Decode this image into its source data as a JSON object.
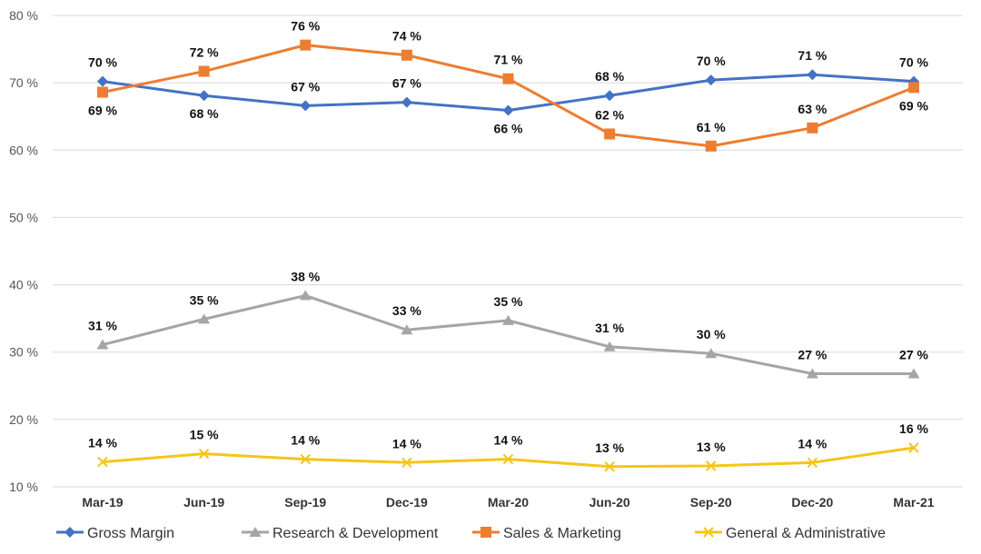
{
  "chart_data": {
    "type": "line",
    "title": "",
    "xlabel": "",
    "ylabel": "",
    "ylim": [
      10,
      80
    ],
    "y_ticks": [
      "10 %",
      "20 %",
      "30 %",
      "40 %",
      "50 %",
      "60 %",
      "70 %",
      "80 %"
    ],
    "grid": "horizontal",
    "legend_position": "bottom",
    "categories": [
      "Mar-19",
      "Jun-19",
      "Sep-19",
      "Dec-19",
      "Mar-20",
      "Jun-20",
      "Sep-20",
      "Dec-20",
      "Mar-21"
    ],
    "series": [
      {
        "name": "Gross Margin",
        "color": "#4472C4",
        "marker": "diamond",
        "values": [
          70.2,
          68.1,
          66.6,
          67.1,
          65.9,
          68.1,
          70.4,
          71.2,
          70.2
        ],
        "labels": [
          "70 %",
          "68 %",
          "67 %",
          "67 %",
          "66 %",
          "68 %",
          "70 %",
          "71 %",
          "70 %"
        ],
        "label_pos": [
          "above",
          "below",
          "above",
          "above",
          "below",
          "above",
          "above",
          "above",
          "above"
        ]
      },
      {
        "name": "Research & Development",
        "color": "#A5A5A5",
        "marker": "triangle",
        "values": [
          31.1,
          34.9,
          38.4,
          33.3,
          34.7,
          30.8,
          29.8,
          26.8,
          26.8
        ],
        "labels": [
          "31 %",
          "35 %",
          "38 %",
          "33 %",
          "35 %",
          "31 %",
          "30 %",
          "27 %",
          "27 %"
        ],
        "label_pos": [
          "above",
          "above",
          "above",
          "above",
          "above",
          "above",
          "above",
          "above",
          "above"
        ]
      },
      {
        "name": "Sales & Marketing",
        "color": "#ED7D31",
        "marker": "square",
        "values": [
          68.6,
          71.7,
          75.6,
          74.1,
          70.6,
          62.4,
          60.6,
          63.3,
          69.3
        ],
        "labels": [
          "69 %",
          "72 %",
          "76 %",
          "74 %",
          "71 %",
          "62 %",
          "61 %",
          "63 %",
          "69 %"
        ],
        "label_pos": [
          "below",
          "above",
          "above",
          "above",
          "above",
          "above",
          "above",
          "above",
          "below"
        ]
      },
      {
        "name": "General & Administrative",
        "color": "#F5C518",
        "marker": "x",
        "values": [
          13.7,
          14.9,
          14.1,
          13.6,
          14.1,
          13.0,
          13.1,
          13.6,
          15.8
        ],
        "labels": [
          "14 %",
          "15 %",
          "14 %",
          "14 %",
          "14 %",
          "13 %",
          "13 %",
          "14 %",
          "16 %"
        ],
        "label_pos": [
          "above",
          "above",
          "above",
          "above",
          "above",
          "above",
          "above",
          "above",
          "above"
        ]
      }
    ]
  }
}
